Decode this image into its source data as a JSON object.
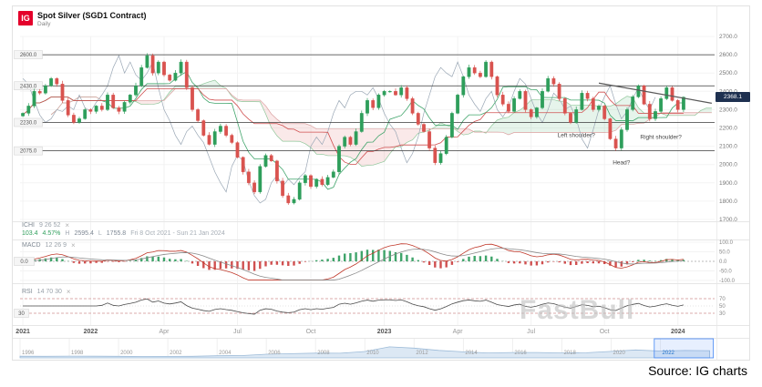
{
  "header": {
    "logo_text": "IG",
    "title": "Spot Silver (SGD1 Contract)",
    "timeframe": "Daily"
  },
  "caption": "Source: IG charts",
  "watermark": "FastBull",
  "price_axis": {
    "ticks": [
      "2700.0",
      "2600.0",
      "2500.0",
      "2400.0",
      "2300.0",
      "2200.0",
      "2100.0",
      "2000.0",
      "1900.0",
      "1800.0",
      "1700.0"
    ],
    "last_price": "2368.1"
  },
  "panels": {
    "ichi": {
      "name": "ICHI",
      "params": "9 26 52",
      "close": "×",
      "change": "103.4",
      "change_pct": "4.57%",
      "high_label": "H",
      "high": "2595.4",
      "low_label": "L",
      "low": "1755.8",
      "date_range": "Fri 8 Oct 2021 - Sun 21 Jan 2024"
    },
    "macd": {
      "name": "MACD",
      "params": "12 26 9",
      "close": "×",
      "ticks": [
        "100.0",
        "50.0",
        "0.0",
        "-50.0",
        "-100.0"
      ],
      "left_label": "0.0"
    },
    "rsi": {
      "name": "RSI",
      "params": "14 70 30",
      "close": "×",
      "ticks": [
        "70",
        "50",
        "30"
      ],
      "left_label": "30"
    }
  },
  "x_axis": {
    "ticks": [
      {
        "label": "2021",
        "index": 0,
        "major": true
      },
      {
        "label": "2022",
        "index": 12,
        "major": true
      },
      {
        "label": "Apr",
        "index": 25,
        "major": false
      },
      {
        "label": "Jul",
        "index": 38,
        "major": false
      },
      {
        "label": "Oct",
        "index": 51,
        "major": false
      },
      {
        "label": "2023",
        "index": 64,
        "major": true
      },
      {
        "label": "Apr",
        "index": 77,
        "major": false
      },
      {
        "label": "Jul",
        "index": 90,
        "major": false
      },
      {
        "label": "Oct",
        "index": 103,
        "major": false
      },
      {
        "label": "2024",
        "index": 116,
        "major": true
      }
    ]
  },
  "annotations": [
    {
      "text": "Left shoulder?",
      "index": 98,
      "value": 2150
    },
    {
      "text": "Head?",
      "index": 106,
      "value": 2000
    },
    {
      "text": "Right shoulder?",
      "index": 113,
      "value": 2140
    }
  ],
  "navigator": {
    "year_labels": [
      "1996",
      "1998",
      "2000",
      "2002",
      "2004",
      "2006",
      "2008",
      "2010",
      "2012",
      "2014",
      "2016",
      "2018",
      "2020",
      "2022"
    ],
    "start_year": 1996,
    "end_year": 2024.2,
    "values": [
      5.2,
      4.9,
      5.5,
      5.2,
      5.0,
      4.4,
      4.6,
      4.9,
      6.7,
      7.3,
      11.5,
      13.4,
      15.0,
      14.7,
      20.2,
      35.1,
      31.1,
      23.8,
      19.1,
      15.7,
      17.1,
      17.0,
      15.7,
      16.2,
      20.5,
      25.1,
      21.8,
      23.4,
      23.0
    ],
    "selection": {
      "from": 2021.75,
      "to": 2024.15
    },
    "selected_year": "2022"
  },
  "chart_data": {
    "type": "candlestick",
    "title": "Spot Silver (SGD1 Contract)",
    "interval": "Daily",
    "ylim": [
      1700,
      2700
    ],
    "high": 2595.4,
    "low": 1755.8,
    "last": 2368.1,
    "overlays": [
      "Ichimoku 9 26 52"
    ],
    "sub_indicators": [
      {
        "type": "MACD",
        "params": [
          12,
          26,
          9
        ]
      },
      {
        "type": "RSI",
        "params": [
          14,
          70,
          30
        ]
      }
    ],
    "hlines": [
      {
        "label": "2600.0",
        "value": 2600
      },
      {
        "label": "2430.0",
        "value": 2430
      },
      {
        "label": "2230.0",
        "value": 2230
      },
      {
        "label": "2075.0",
        "value": 2075
      }
    ],
    "trendline": {
      "from_index": 102,
      "from_value": 2445,
      "to_index": 122,
      "to_value": 2335
    },
    "closes": [
      2280,
      2320,
      2400,
      2390,
      2430,
      2470,
      2440,
      2350,
      2270,
      2230,
      2250,
      2300,
      2290,
      2320,
      2300,
      2380,
      2310,
      2290,
      2340,
      2380,
      2430,
      2530,
      2595,
      2500,
      2560,
      2490,
      2460,
      2500,
      2560,
      2420,
      2300,
      2240,
      2160,
      2110,
      2180,
      2210,
      2160,
      2120,
      2040,
      1960,
      1900,
      1850,
      1990,
      2050,
      2020,
      1910,
      1830,
      1790,
      1810,
      1900,
      1940,
      1880,
      1920,
      1890,
      1930,
      1960,
      2100,
      2150,
      2110,
      2180,
      2280,
      2350,
      2310,
      2380,
      2400,
      2400,
      2380,
      2420,
      2360,
      2280,
      2220,
      2180,
      2090,
      2010,
      2060,
      2150,
      2280,
      2380,
      2480,
      2530,
      2500,
      2480,
      2560,
      2480,
      2380,
      2330,
      2290,
      2360,
      2400,
      2300,
      2260,
      2310,
      2400,
      2470,
      2440,
      2360,
      2280,
      2230,
      2300,
      2390,
      2360,
      2300,
      2320,
      2250,
      2140,
      2090,
      2190,
      2300,
      2370,
      2430,
      2330,
      2250,
      2290,
      2360,
      2420,
      2350,
      2300,
      2368.1
    ]
  }
}
